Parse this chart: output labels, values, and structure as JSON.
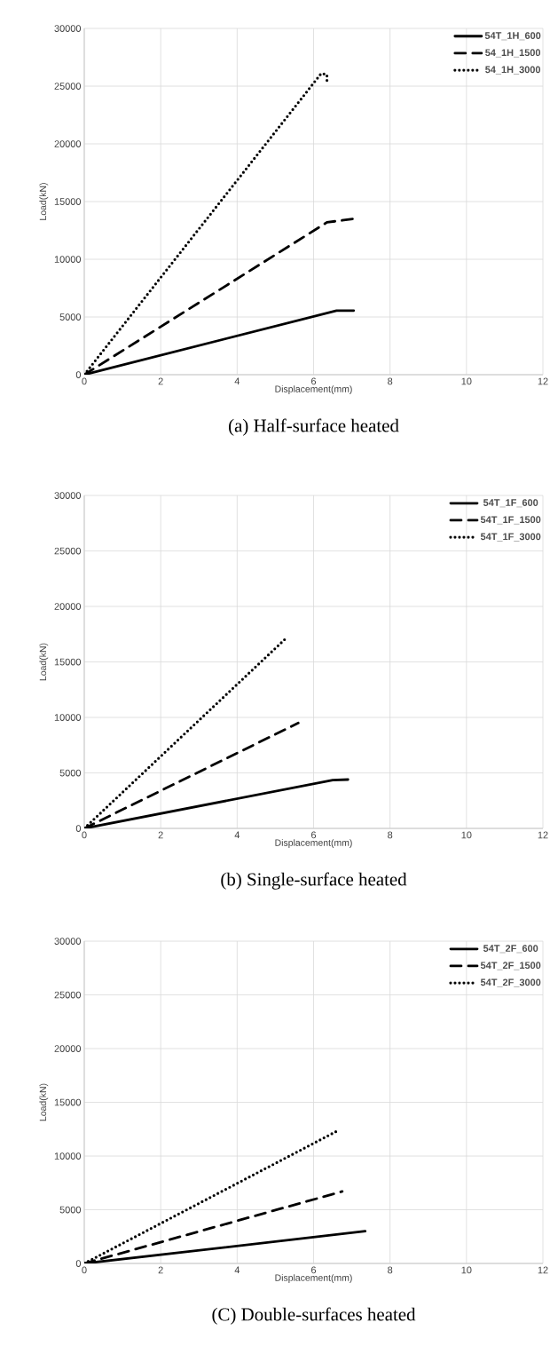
{
  "chart_data": [
    {
      "type": "line",
      "title": "(a) Half-surface heated",
      "xlabel": "Displacement(mm)",
      "ylabel": "Load(kN)",
      "xlim": [
        0,
        12
      ],
      "ylim": [
        0,
        30000
      ],
      "xticks": [
        0,
        2,
        4,
        6,
        8,
        10,
        12
      ],
      "yticks": [
        0,
        5000,
        10000,
        15000,
        20000,
        25000,
        30000
      ],
      "grid": true,
      "legend": "top right",
      "series": [
        {
          "name": "54T_1H_600",
          "color": "#000000",
          "line_style": "solid",
          "x": [
            0,
            6.6,
            7.05
          ],
          "values": [
            0,
            5550,
            5550
          ]
        },
        {
          "name": "54_1H_1500",
          "color": "#000000",
          "line_style": "dashed",
          "x": [
            0,
            6.35,
            7.05
          ],
          "values": [
            0,
            13200,
            13500
          ]
        },
        {
          "name": "54_1H_3000",
          "color": "#000000",
          "line_style": "dotted",
          "x": [
            0,
            6.2,
            6.35,
            6.35
          ],
          "values": [
            0,
            26100,
            26000,
            25300
          ]
        }
      ]
    },
    {
      "type": "line",
      "title": "(b) Single-surface heated",
      "xlabel": "Displacement(mm)",
      "ylabel": "Load(kN)",
      "xlim": [
        0,
        12
      ],
      "ylim": [
        0,
        30000
      ],
      "xticks": [
        0,
        2,
        4,
        6,
        8,
        10,
        12
      ],
      "yticks": [
        0,
        5000,
        10000,
        15000,
        20000,
        25000,
        30000
      ],
      "grid": true,
      "legend": "top right",
      "series": [
        {
          "name": "54T_1F_600",
          "color": "#000000",
          "line_style": "solid",
          "x": [
            0,
            6.5,
            6.9
          ],
          "values": [
            0,
            4350,
            4400
          ]
        },
        {
          "name": "54T_1F_1500",
          "color": "#000000",
          "line_style": "dashed",
          "x": [
            0,
            5.6
          ],
          "values": [
            0,
            9500
          ]
        },
        {
          "name": "54T_1F_3000",
          "color": "#000000",
          "line_style": "dotted",
          "x": [
            0,
            5.3
          ],
          "values": [
            0,
            17200
          ]
        }
      ]
    },
    {
      "type": "line",
      "title": "(C) Double-surfaces heated",
      "xlabel": "Displacement(mm)",
      "ylabel": "Load(kN)",
      "xlim": [
        0,
        12
      ],
      "ylim": [
        0,
        30000
      ],
      "xticks": [
        0,
        2,
        4,
        6,
        8,
        10,
        12
      ],
      "yticks": [
        0,
        5000,
        10000,
        15000,
        20000,
        25000,
        30000
      ],
      "grid": true,
      "legend": "top right",
      "series": [
        {
          "name": "54T_2F_600",
          "color": "#000000",
          "line_style": "solid",
          "x": [
            0,
            7.35
          ],
          "values": [
            0,
            3000
          ]
        },
        {
          "name": "54T_2F_1500",
          "color": "#000000",
          "line_style": "dashed",
          "x": [
            0,
            6.75
          ],
          "values": [
            0,
            6700
          ]
        },
        {
          "name": "54T_2F_3000",
          "color": "#000000",
          "line_style": "dotted",
          "x": [
            0,
            6.6
          ],
          "values": [
            0,
            12300
          ]
        }
      ]
    }
  ]
}
